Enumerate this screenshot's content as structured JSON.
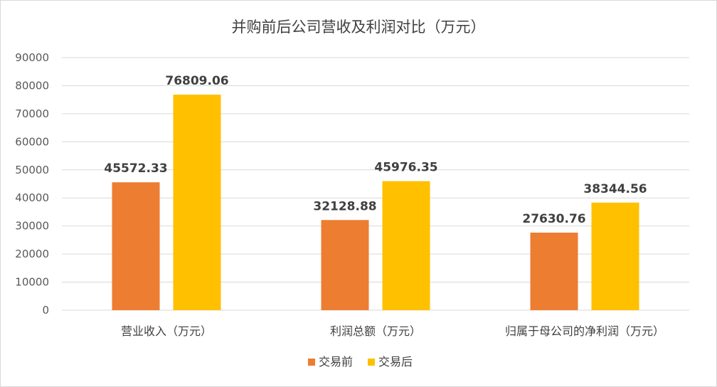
{
  "chart_data": {
    "type": "bar",
    "title": "并购前后公司营收及利润对比（万元）",
    "categories": [
      "营业收入（万元）",
      "利润总额（万元）",
      "归属于母公司的净利润（万元）"
    ],
    "series": [
      {
        "name": "交易前",
        "color": "#ED7D31",
        "values": [
          45572.33,
          32128.88,
          27630.76
        ],
        "labels": [
          "45572.33",
          "32128.88",
          "27630.76"
        ]
      },
      {
        "name": "交易后",
        "color": "#FFC000",
        "values": [
          76809.06,
          45976.35,
          38344.56
        ],
        "labels": [
          "76809.06",
          "45976.35",
          "38344.56"
        ]
      }
    ],
    "ylim": [
      0,
      90000
    ],
    "yticks": [
      "0",
      "10000",
      "20000",
      "30000",
      "40000",
      "50000",
      "60000",
      "70000",
      "80000",
      "90000"
    ],
    "grid": true,
    "legend": "bottom"
  }
}
